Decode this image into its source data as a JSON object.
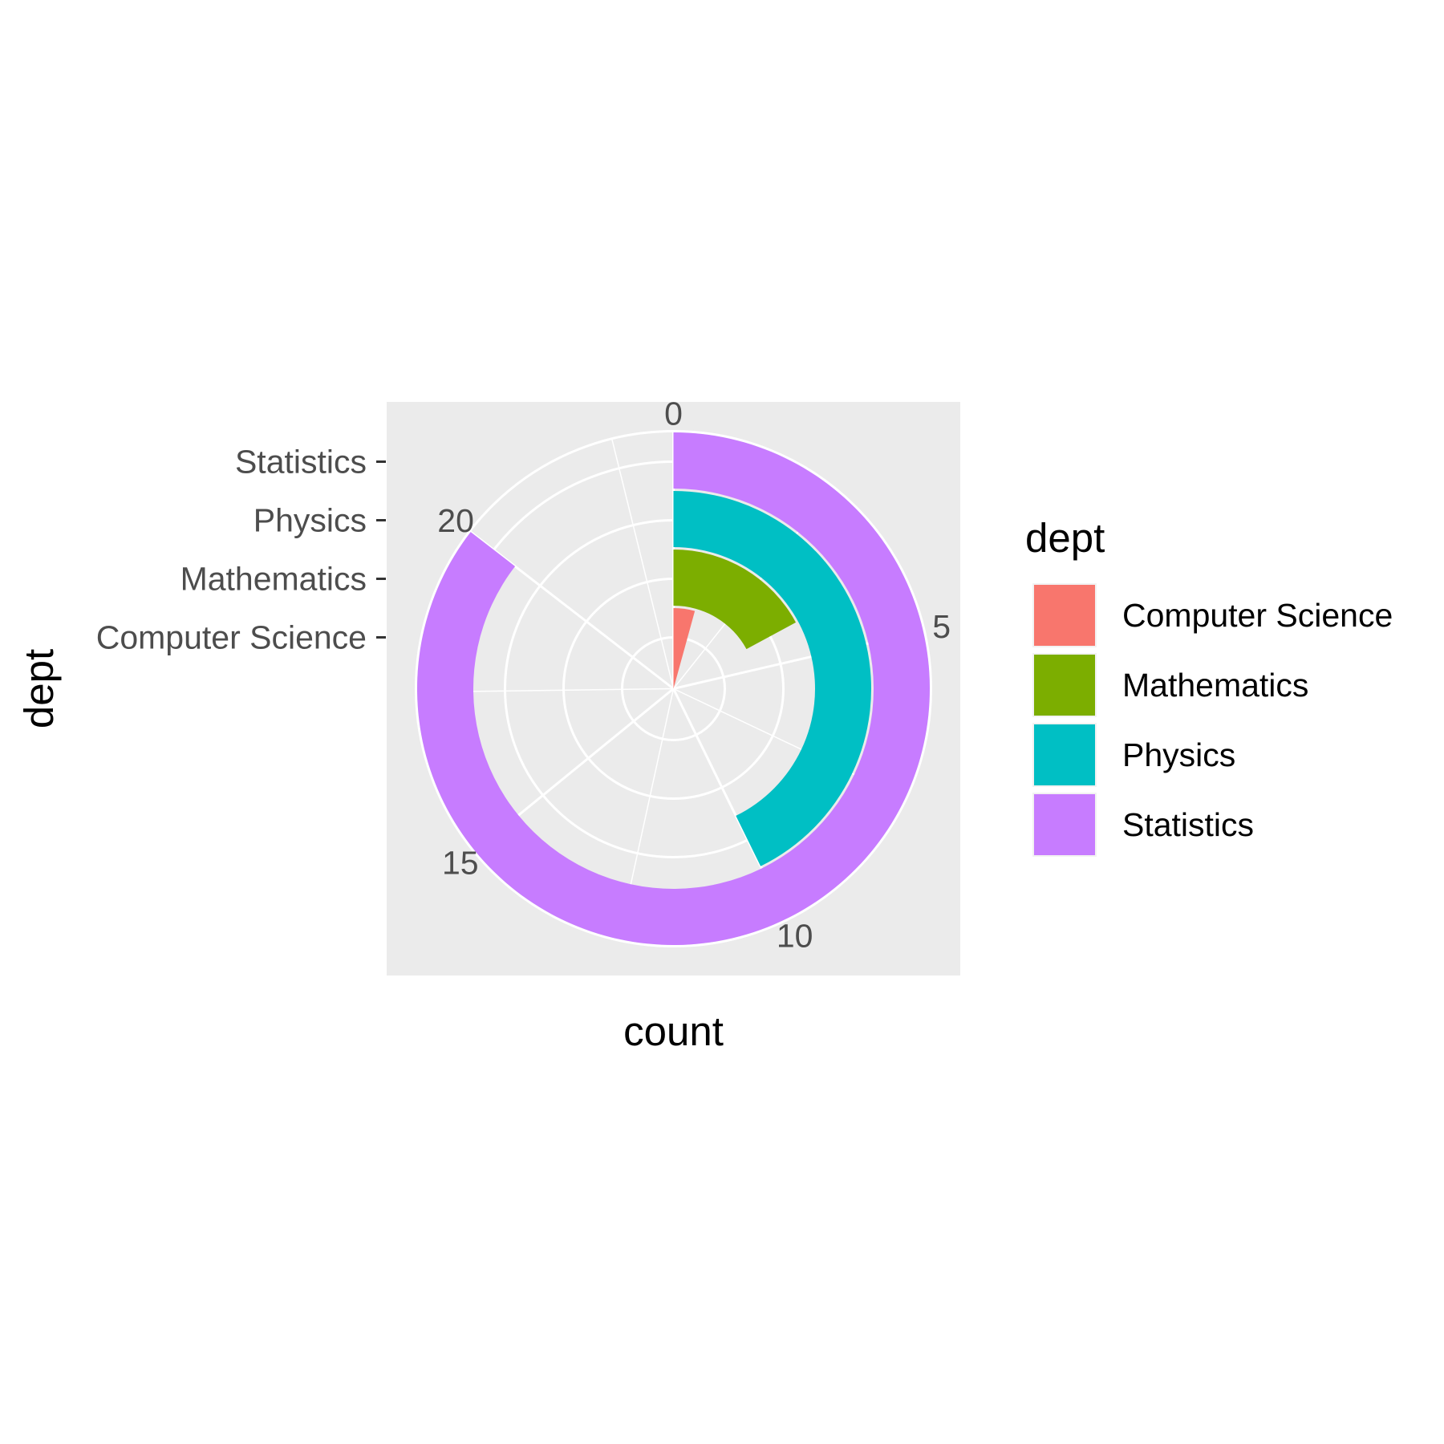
{
  "chart_data": {
    "type": "bar",
    "coord": "polar",
    "categories": [
      "Computer Science",
      "Mathematics",
      "Physics",
      "Statistics"
    ],
    "values": [
      1,
      4,
      10,
      20
    ],
    "colors": [
      "#F8766D",
      "#7CAE00",
      "#00BFC4",
      "#C77CFF"
    ],
    "theta_axis": {
      "label": "count",
      "ticks": [
        "0",
        "5",
        "10",
        "15",
        "20"
      ],
      "range": [
        0,
        23.4
      ]
    },
    "radial_axis": {
      "label": "dept",
      "ticks": [
        "Computer Science",
        "Mathematics",
        "Physics",
        "Statistics"
      ]
    },
    "legend": {
      "title": "dept",
      "entries": [
        "Computer Science",
        "Mathematics",
        "Physics",
        "Statistics"
      ],
      "position": "right"
    },
    "panel_background": "#EBEBEB",
    "grid": true
  }
}
